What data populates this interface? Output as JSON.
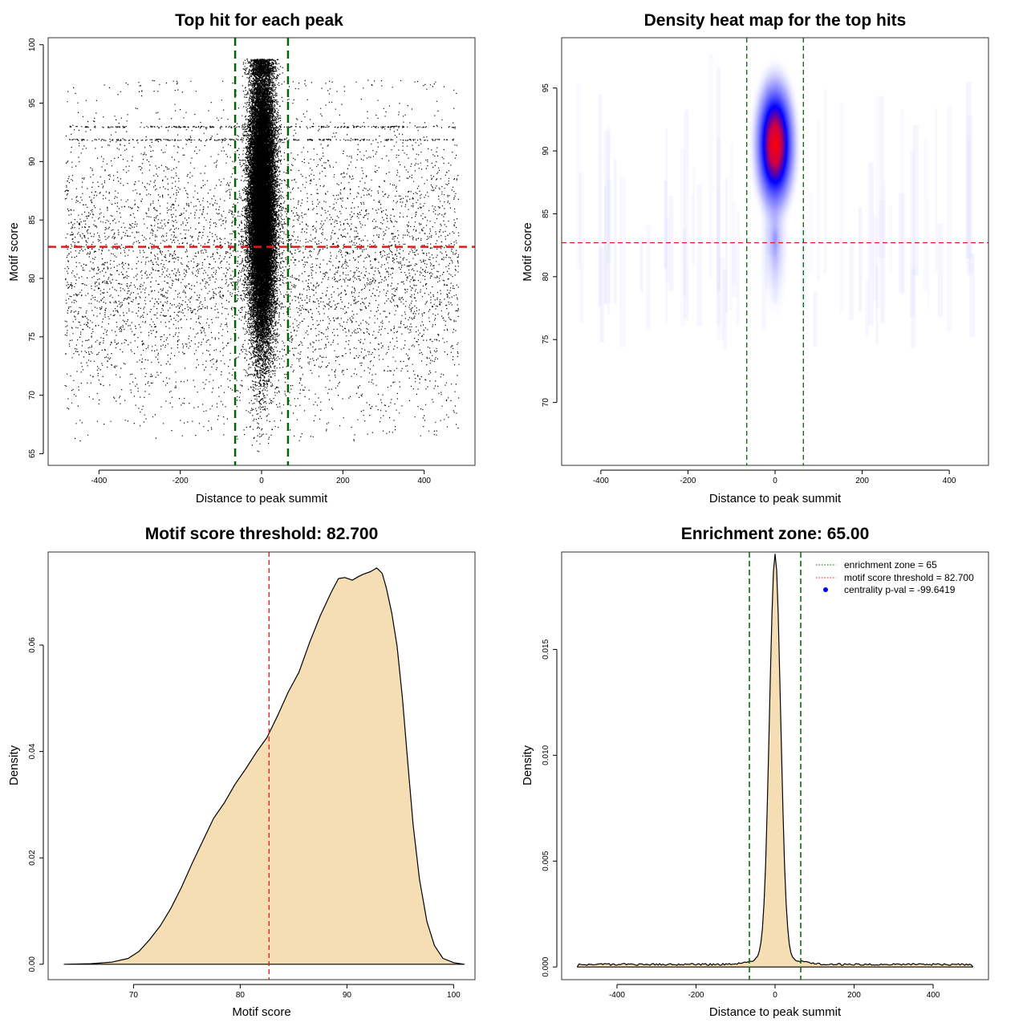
{
  "colors": {
    "points": "#000000",
    "threshold_line": "#e31a1c",
    "zone_line": "#006400",
    "density_fill": "#f5deb3",
    "heat_low": "#ffffff",
    "heat_mid": "#0000ff",
    "heat_high": "#ff0000",
    "pval_marker": "#0000ff"
  },
  "chart_data": [
    {
      "type": "scatter",
      "title": "Top hit for each peak",
      "xlabel": "Distance to peak summit",
      "ylabel": "Motif score",
      "xlim": [
        -525,
        525
      ],
      "ylim": [
        64,
        100.6
      ],
      "xticks": [
        -400,
        -200,
        0,
        200,
        400
      ],
      "yticks": [
        65,
        70,
        75,
        80,
        85,
        90,
        95,
        100
      ],
      "threshold_y": 82.7,
      "zone_x": [
        -65,
        65
      ],
      "background_points": {
        "x_range": [
          -485,
          485
        ],
        "y_mean": 81,
        "y_sd": 6.5,
        "n_approx": 6000
      },
      "banded_scores": [
        93.0,
        91.9
      ],
      "central_cluster": {
        "x_center": 0,
        "x_sd": 16,
        "y_mean": 86.5,
        "y_sd": 6.0,
        "n_approx": 30000
      }
    },
    {
      "type": "heatmap",
      "title": "Density heat map for the top hits",
      "xlabel": "Distance to peak summit",
      "ylabel": "Motif score",
      "xlim": [
        -490,
        490
      ],
      "ylim": [
        65,
        99
      ],
      "xticks": [
        -400,
        -200,
        0,
        200,
        400
      ],
      "yticks": [
        70,
        75,
        80,
        85,
        90,
        95
      ],
      "threshold_y": 82.7,
      "zone_x": [
        -65,
        65
      ],
      "peak": {
        "x": 0,
        "y": 90.5
      }
    },
    {
      "type": "area",
      "title": "Motif score threshold: 82.700",
      "xlabel": "Motif score",
      "ylabel": "Density",
      "xlim": [
        62,
        102
      ],
      "ylim": [
        -0.0029,
        0.0775
      ],
      "xticks": [
        70,
        80,
        90,
        100
      ],
      "yticks": [
        0.0,
        0.02,
        0.04,
        0.06
      ],
      "ytick_labels": [
        "0.00",
        "0.02",
        "0.04",
        "0.06"
      ],
      "threshold_x": 82.7,
      "x": [
        63.5,
        66,
        68,
        69.5,
        70.5,
        71.5,
        72.5,
        73.5,
        74.5,
        75.5,
        76.5,
        77.5,
        78.5,
        79.5,
        80.5,
        81.5,
        82.5,
        83.5,
        84.5,
        85.5,
        86.5,
        87.5,
        88.5,
        89.2,
        89.8,
        90.5,
        91.0,
        91.5,
        92.2,
        92.8,
        93.3,
        93.7,
        94.2,
        94.7,
        95.2,
        95.7,
        96.2,
        96.8,
        97.5,
        98.2,
        99.0,
        100,
        101
      ],
      "y": [
        0.0,
        0.0001,
        0.0004,
        0.0011,
        0.0024,
        0.0046,
        0.0072,
        0.0105,
        0.0145,
        0.019,
        0.0232,
        0.0274,
        0.0303,
        0.0338,
        0.0367,
        0.0398,
        0.0426,
        0.0467,
        0.0512,
        0.0549,
        0.0605,
        0.0655,
        0.0698,
        0.0725,
        0.0727,
        0.0722,
        0.0728,
        0.0733,
        0.0738,
        0.0745,
        0.0735,
        0.0707,
        0.066,
        0.0598,
        0.05,
        0.038,
        0.0262,
        0.016,
        0.008,
        0.0035,
        0.0011,
        0.0003,
        0.0
      ]
    },
    {
      "type": "area",
      "title": "Enrichment zone: 65.00",
      "xlabel": "Distance to peak summit",
      "ylabel": "Density",
      "xlim": [
        -540,
        540
      ],
      "ylim": [
        -0.0006,
        0.0196
      ],
      "xticks": [
        -400,
        -200,
        0,
        200,
        400
      ],
      "yticks": [
        0.0,
        0.005,
        0.01,
        0.015
      ],
      "ytick_labels": [
        "0.000",
        "0.005",
        "0.010",
        "0.015"
      ],
      "zone_x": [
        -65,
        65
      ],
      "baseline_density": 0.00012,
      "peak_density": 0.0191,
      "peak_sd": 14,
      "x_range": [
        -500,
        500
      ],
      "legend": [
        {
          "label": "enrichment zone = 65",
          "style": "dotted-green"
        },
        {
          "label": "motif score threshold = 82.700",
          "style": "dotted-red"
        },
        {
          "label": "centrality p-val = -99.6419",
          "style": "blue-dot"
        }
      ]
    }
  ]
}
